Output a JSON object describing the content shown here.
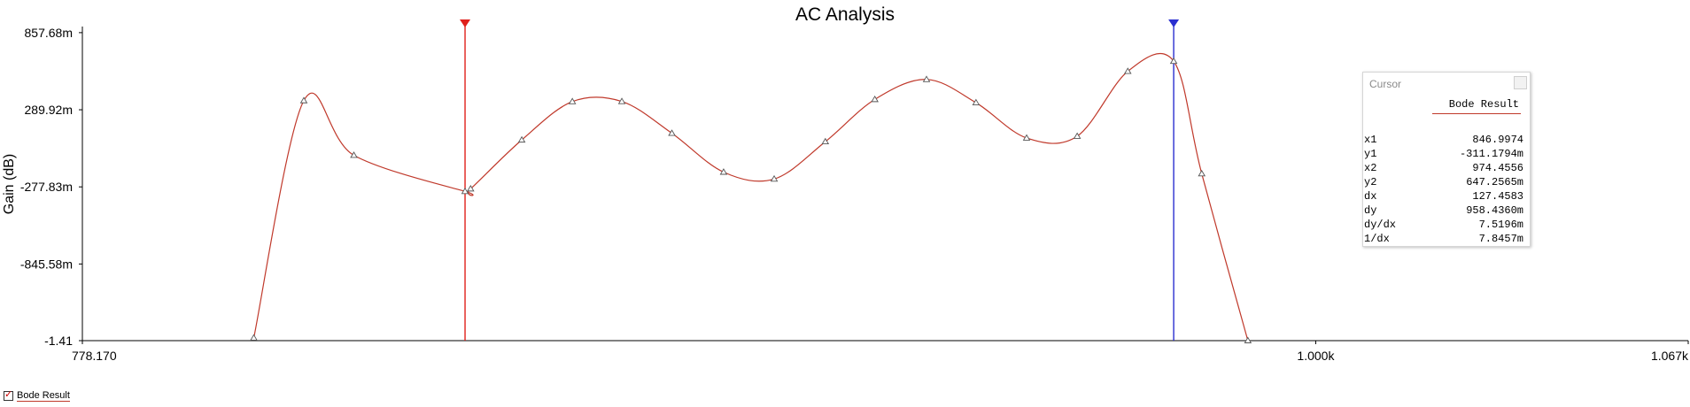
{
  "colors": {
    "series": "#c0392b",
    "cursor1": "#e0201b",
    "cursor2": "#2a2fd0",
    "axis": "#000000"
  },
  "legend": {
    "label": "Bode Result"
  },
  "cursor_panel": {
    "title": "Cursor",
    "series_name": "Bode Result",
    "rows": [
      {
        "label": "x1",
        "value": "846.9974"
      },
      {
        "label": "y1",
        "value": "-311.1794m"
      },
      {
        "label": "x2",
        "value": "974.4556"
      },
      {
        "label": "y2",
        "value": "647.2565m"
      },
      {
        "label": "dx",
        "value": "127.4583"
      },
      {
        "label": "dy",
        "value": "958.4360m"
      },
      {
        "label": "dy/dx",
        "value": "7.5196m"
      },
      {
        "label": "1/dx",
        "value": "7.8457m"
      }
    ]
  },
  "chart_data": {
    "type": "line",
    "title": "AC Analysis",
    "ylabel": "Gain (dB)",
    "xlabel": "",
    "x_ticks": [
      {
        "value": 778.17,
        "label": "778.170"
      },
      {
        "value": 1000,
        "label": "1.000k"
      },
      {
        "value": 1067,
        "label": "1.067k"
      }
    ],
    "y_ticks": [
      {
        "value": 0.85768,
        "label": "857.68m"
      },
      {
        "value": 0.28992,
        "label": "289.92m"
      },
      {
        "value": -0.27783,
        "label": "-277.83m"
      },
      {
        "value": -0.84558,
        "label": "-845.58m"
      },
      {
        "value": -1.41,
        "label": "-1.41"
      }
    ],
    "xlim": [
      778.17,
      1067
    ],
    "ylim": [
      -1.41,
      0.857
    ],
    "grid": false,
    "series": [
      {
        "name": "Bode Result",
        "x": [
          809.0,
          818.0,
          827.0,
          846.9974,
          848.0,
          857.2,
          866.3,
          875.2,
          884.2,
          893.5,
          902.6,
          911.8,
          920.7,
          930.0,
          938.9,
          948.0,
          957.1,
          966.2,
          974.4556,
          979.5,
          987.8
        ],
        "y": [
          -1.39,
          0.357,
          -0.045,
          -0.311,
          -0.292,
          0.068,
          0.35,
          0.351,
          0.117,
          -0.169,
          -0.22,
          0.055,
          0.366,
          0.513,
          0.342,
          0.082,
          0.095,
          0.573,
          0.647,
          -0.181,
          -1.41
        ]
      }
    ],
    "cursors": [
      {
        "name": "1",
        "x": 846.9974
      },
      {
        "name": "2",
        "x": 974.4556
      }
    ]
  }
}
